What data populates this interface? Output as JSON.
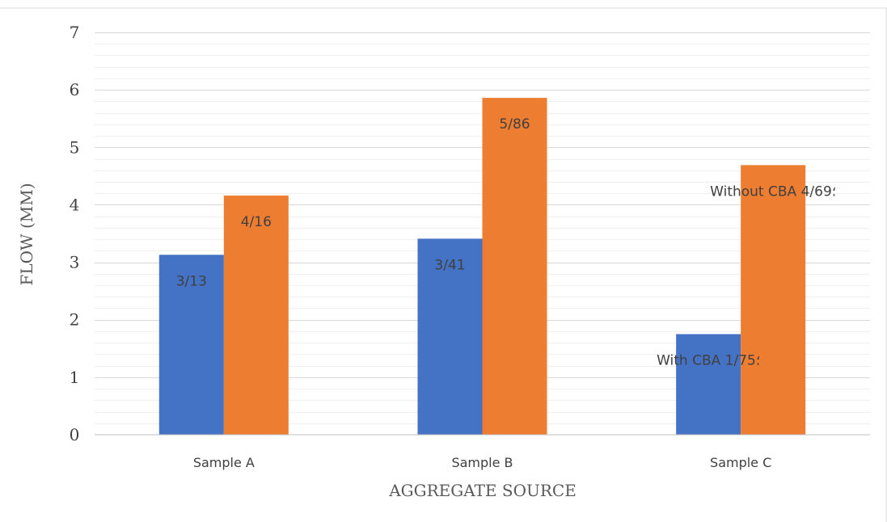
{
  "chart_data": {
    "type": "bar",
    "categories": [
      "Sample A",
      "Sample B",
      "Sample C"
    ],
    "series": [
      {
        "name": "With CBA",
        "color": "#4472c4",
        "values": [
          3.13,
          3.41,
          1.75
        ],
        "labels": [
          "3/13",
          "3/41",
          "With CBA ؛1/75"
        ]
      },
      {
        "name": "Without CBA",
        "color": "#ed7d31",
        "values": [
          4.16,
          5.86,
          4.69
        ],
        "labels": [
          "4/16",
          "5/86",
          "Without CBA ؛4/69"
        ]
      }
    ],
    "title": "",
    "xlabel": "AGGREGATE SOURCE",
    "ylabel": "FLOW (MM)",
    "ylim": [
      0,
      7
    ],
    "yticks": [
      "0",
      "1",
      "2",
      "3",
      "4",
      "5",
      "6",
      "7"
    ],
    "grid": true,
    "legend": "none"
  }
}
